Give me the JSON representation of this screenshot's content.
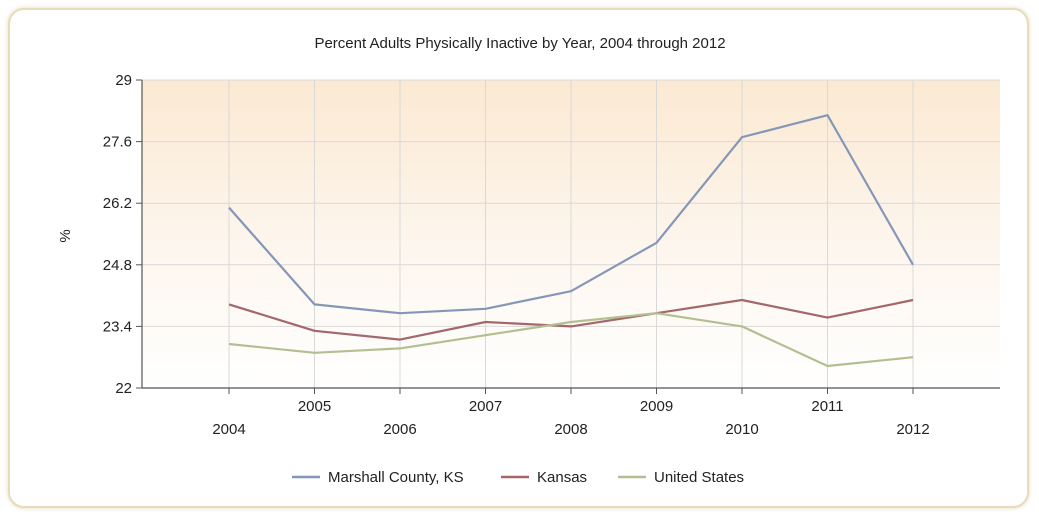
{
  "chart_data": {
    "type": "line",
    "title": "Percent Adults Physically Inactive by Year, 2004 through 2012",
    "xlabel": "",
    "ylabel": "%",
    "ylim": [
      22,
      29
    ],
    "yticks": [
      "22",
      "23.4",
      "24.8",
      "26.2",
      "27.6",
      "29"
    ],
    "categories": [
      "2004",
      "2005",
      "2006",
      "2007",
      "2008",
      "2009",
      "2010",
      "2011",
      "2012"
    ],
    "grid": true,
    "legend_position": "bottom",
    "series": [
      {
        "name": "Marshall County, KS",
        "color": "#8597b8",
        "values": [
          26.1,
          23.9,
          23.7,
          23.8,
          24.2,
          25.3,
          27.7,
          28.2,
          24.8
        ]
      },
      {
        "name": "Kansas",
        "color": "#a3676c",
        "values": [
          23.9,
          23.3,
          23.1,
          23.5,
          23.4,
          23.7,
          24.0,
          23.6,
          24.0
        ]
      },
      {
        "name": "United States",
        "color": "#b3bf90",
        "values": [
          23.0,
          22.8,
          22.9,
          23.2,
          23.5,
          23.7,
          23.4,
          22.5,
          22.7
        ]
      }
    ]
  }
}
